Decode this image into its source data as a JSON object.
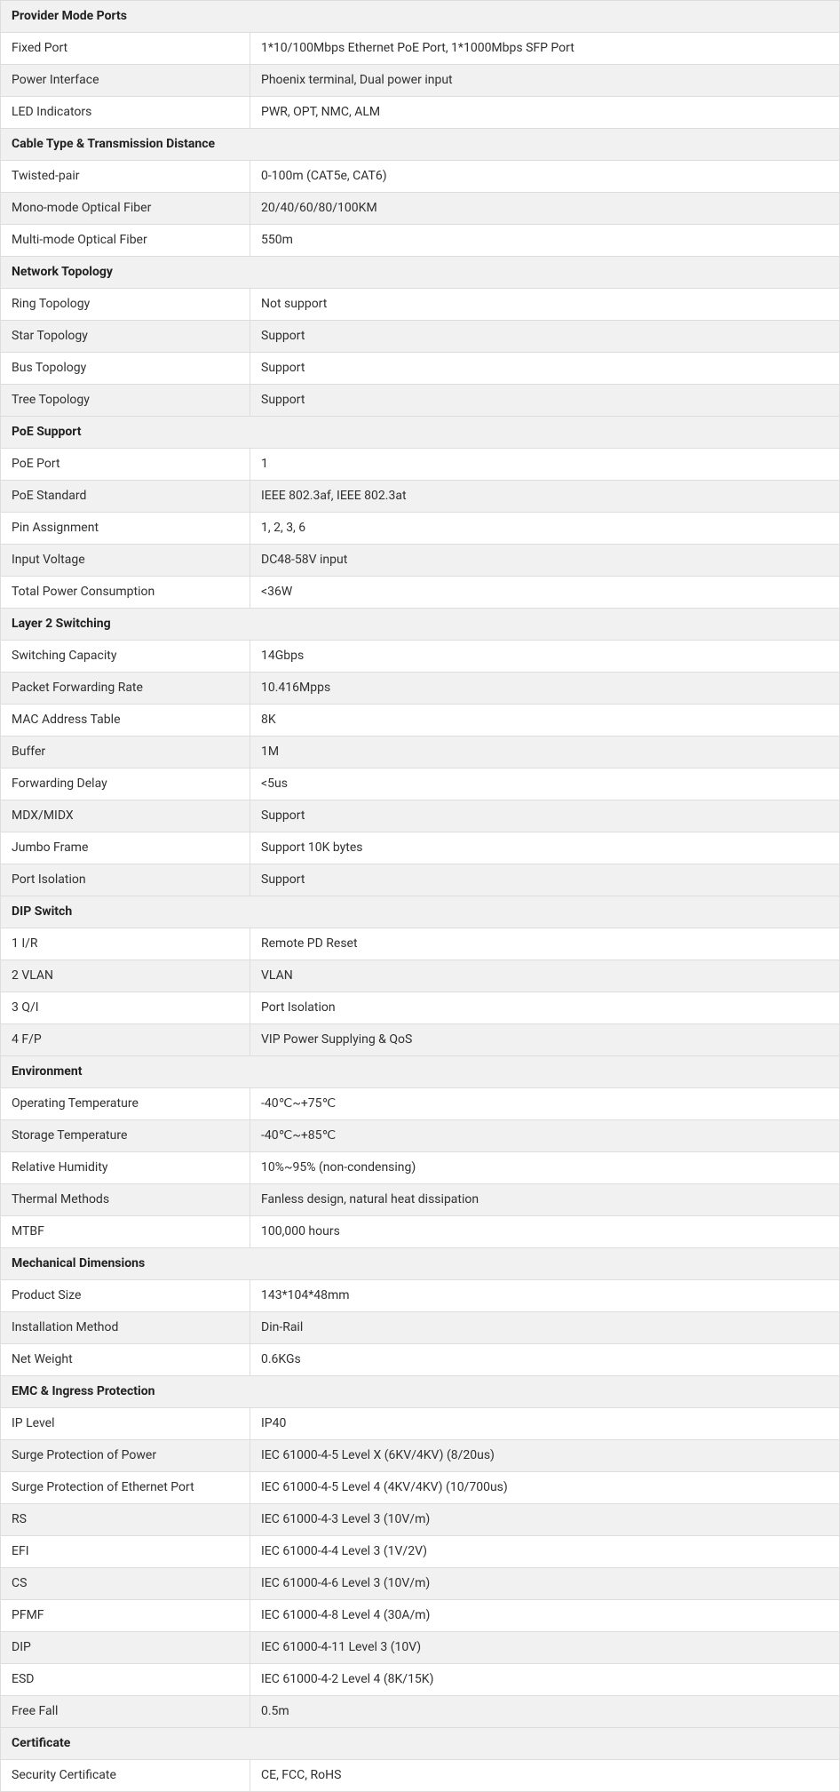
{
  "table": {
    "col_widths": {
      "label": 281,
      "value": 665
    },
    "colors": {
      "border": "#dddddd",
      "header_bg": "#f1f1f1",
      "odd_bg": "#ffffff",
      "even_bg": "#f1f1f1",
      "text": "#303030",
      "header_text": "#222222"
    },
    "font_size": 14
  },
  "sections": [
    {
      "title": "Provider Mode Ports",
      "rows": [
        {
          "label": "Fixed Port",
          "value": " 1*10/100Mbps Ethernet PoE Port, 1*1000Mbps SFP Port"
        },
        {
          "label": "Power Interface",
          "value": "Phoenix terminal, Dual power input"
        },
        {
          "label": "LED Indicators",
          "value": "PWR, OPT, NMC, ALM"
        }
      ]
    },
    {
      "title": "Cable Type & Transmission Distance",
      "rows": [
        {
          "label": "Twisted-pair",
          "value": "0-100m (CAT5e, CAT6)"
        },
        {
          "label": "Mono-mode Optical Fiber",
          "value": "20/40/60/80/100KM"
        },
        {
          "label": "Multi-mode Optical Fiber",
          "value": "550m"
        }
      ]
    },
    {
      "title": "Network Topology",
      "rows": [
        {
          "label": "Ring Topology",
          "value": "Not support"
        },
        {
          "label": "Star Topology",
          "value": "Support"
        },
        {
          "label": "Bus Topology",
          "value": "Support"
        },
        {
          "label": "Tree Topology",
          "value": "Support"
        }
      ]
    },
    {
      "title": "PoE Support",
      "rows": [
        {
          "label": "PoE Port",
          "value": "1"
        },
        {
          "label": "PoE Standard",
          "value": "IEEE 802.3af, IEEE 802.3at"
        },
        {
          "label": "Pin Assignment",
          "value": "1, 2, 3, 6"
        },
        {
          "label": "Input Voltage",
          "value": " DC48-58V input"
        },
        {
          "label": "Total Power Consumption",
          "value": "<36W"
        }
      ]
    },
    {
      "title": "Layer 2 Switching",
      "rows": [
        {
          "label": "Switching Capacity",
          "value": "14Gbps"
        },
        {
          "label": "Packet Forwarding Rate",
          "value": "10.416Mpps"
        },
        {
          "label": "MAC Address Table",
          "value": "8K"
        },
        {
          "label": "Buffer",
          "value": "1M"
        },
        {
          "label": "Forwarding Delay",
          "value": "<5us"
        },
        {
          "label": "MDX/MIDX",
          "value": "Support"
        },
        {
          "label": "Jumbo Frame",
          "value": "Support 10K bytes"
        },
        {
          "label": "Port Isolation",
          "value": "Support"
        }
      ]
    },
    {
      "title": "DIP Switch",
      "rows": [
        {
          "label": "1 I/R",
          "value": "Remote PD Reset"
        },
        {
          "label": "2 VLAN",
          "value": "VLAN"
        },
        {
          "label": "3 Q/I",
          "value": "Port Isolation"
        },
        {
          "label": "4 F/P",
          "value": "VIP Power Supplying & QoS"
        }
      ]
    },
    {
      "title": "Environment",
      "rows": [
        {
          "label": "Operating Temperature",
          "value": "-40℃~+75℃"
        },
        {
          "label": "Storage Temperature",
          "value": "-40℃~+85℃"
        },
        {
          "label": "Relative Humidity",
          "value": "10%~95% (non-condensing)"
        },
        {
          "label": "Thermal Methods",
          "value": "Fanless design, natural heat dissipation"
        },
        {
          "label": "MTBF",
          "value": "100,000 hours"
        }
      ]
    },
    {
      "title": "Mechanical Dimensions",
      "rows": [
        {
          "label": "Product Size",
          "value": "143*104*48mm"
        },
        {
          "label": "Installation Method",
          "value": "Din-Rail"
        },
        {
          "label": "Net Weight",
          "value": "0.6KGs"
        }
      ]
    },
    {
      "title": "EMC & Ingress Protection",
      "rows": [
        {
          "label": "IP Level",
          "value": "IP40"
        },
        {
          "label": "Surge Protection of Power",
          "value": "IEC 61000-4-5 Level X (6KV/4KV) (8/20us)"
        },
        {
          "label": "Surge Protection of Ethernet Port",
          "value": "IEC 61000-4-5 Level 4 (4KV/4KV) (10/700us)"
        },
        {
          "label": "RS",
          "value": "IEC 61000-4-3 Level 3 (10V/m)"
        },
        {
          "label": "EFI",
          "value": "IEC 61000-4-4 Level 3 (1V/2V)"
        },
        {
          "label": "CS",
          "value": "IEC 61000-4-6 Level 3 (10V/m)"
        },
        {
          "label": "PFMF",
          "value": "IEC 61000-4-8 Level 4 (30A/m)"
        },
        {
          "label": "DIP",
          "value": "IEC 61000-4-11 Level 3 (10V)"
        },
        {
          "label": "ESD",
          "value": "IEC 61000-4-2 Level 4 (8K/15K)"
        },
        {
          "label": "Free Fall",
          "value": "0.5m"
        }
      ]
    },
    {
      "title": "Certificate",
      "rows": [
        {
          "label": "Security Certificate",
          "value": "CE, FCC, RoHS"
        }
      ]
    }
  ]
}
